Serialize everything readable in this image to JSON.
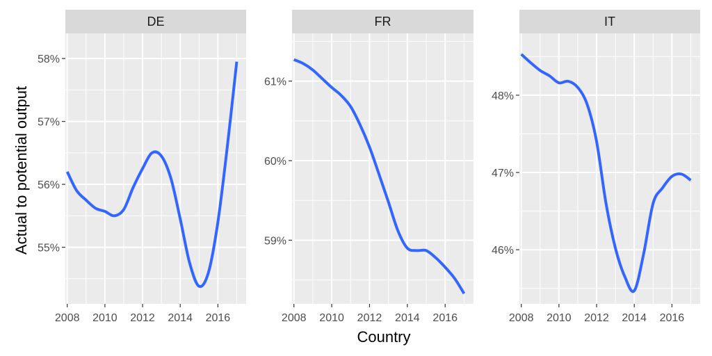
{
  "chart_data": {
    "type": "line",
    "xlabel": "Country",
    "ylabel": "Actual to potential output",
    "grid": true,
    "facet_order": [
      "DE",
      "FR",
      "IT"
    ],
    "series_color": "#3366FF",
    "panel_bg": "#EBEBEB",
    "strip_bg": "#D9D9D9",
    "panels": [
      {
        "name": "DE",
        "xlim": [
          2007.9,
          2017.5
        ],
        "ylim": [
          54.1,
          58.4
        ],
        "x_ticks": [
          2008,
          2010,
          2012,
          2014,
          2016
        ],
        "x_tick_labels": [
          "2008",
          "2010",
          "2012",
          "2014",
          "2016"
        ],
        "y_ticks": [
          55,
          56,
          57,
          58
        ],
        "y_tick_labels": [
          "55%",
          "56%",
          "57%",
          "58%"
        ],
        "x": [
          2008,
          2008.5,
          2009,
          2009.5,
          2010,
          2010.5,
          2011,
          2011.5,
          2012,
          2012.5,
          2013,
          2013.5,
          2014,
          2014.5,
          2015,
          2015.5,
          2016,
          2016.5,
          2017
        ],
        "values": [
          56.2,
          55.9,
          55.75,
          55.62,
          55.57,
          55.5,
          55.6,
          55.95,
          56.25,
          56.5,
          56.45,
          56.1,
          55.45,
          54.75,
          54.38,
          54.6,
          55.4,
          56.6,
          57.95
        ]
      },
      {
        "name": "FR",
        "xlim": [
          2007.9,
          2017.5
        ],
        "ylim": [
          58.2,
          61.6
        ],
        "x_ticks": [
          2008,
          2010,
          2012,
          2014,
          2016
        ],
        "x_tick_labels": [
          "2008",
          "2010",
          "2012",
          "2014",
          "2016"
        ],
        "y_ticks": [
          59,
          60,
          61
        ],
        "y_tick_labels": [
          "59%",
          "60%",
          "61%"
        ],
        "x": [
          2008,
          2008.5,
          2009,
          2009.5,
          2010,
          2010.5,
          2011,
          2011.5,
          2012,
          2012.5,
          2013,
          2013.5,
          2014,
          2014.5,
          2015,
          2015.5,
          2016,
          2016.5,
          2017
        ],
        "values": [
          61.27,
          61.22,
          61.14,
          61.03,
          60.92,
          60.82,
          60.68,
          60.45,
          60.17,
          59.83,
          59.48,
          59.12,
          58.9,
          58.87,
          58.87,
          58.78,
          58.66,
          58.52,
          58.33
        ]
      },
      {
        "name": "IT",
        "xlim": [
          2007.9,
          2017.5
        ],
        "ylim": [
          45.3,
          48.8
        ],
        "x_ticks": [
          2008,
          2010,
          2012,
          2014,
          2016
        ],
        "x_tick_labels": [
          "2008",
          "2010",
          "2012",
          "2014",
          "2016"
        ],
        "y_ticks": [
          46,
          47,
          48
        ],
        "y_tick_labels": [
          "46%",
          "47%",
          "48%"
        ],
        "x": [
          2008,
          2008.5,
          2009,
          2009.5,
          2010,
          2010.5,
          2011,
          2011.5,
          2012,
          2012.5,
          2013,
          2013.5,
          2014,
          2014.5,
          2015,
          2015.5,
          2016,
          2016.5,
          2017
        ],
        "values": [
          48.53,
          48.42,
          48.32,
          48.25,
          48.16,
          48.18,
          48.1,
          47.88,
          47.4,
          46.6,
          46.02,
          45.65,
          45.47,
          45.95,
          46.6,
          46.8,
          46.95,
          46.98,
          46.9
        ]
      }
    ]
  }
}
